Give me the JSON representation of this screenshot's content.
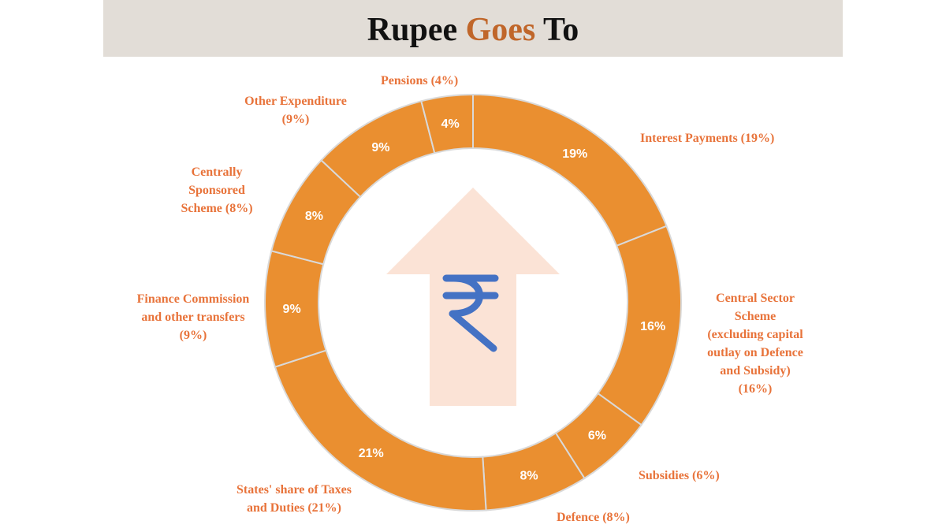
{
  "title": {
    "part1": "Rupee",
    "part2": "Goes",
    "part3": "To"
  },
  "colors": {
    "segment": "#ea8f30",
    "divider": "#d9d9d9",
    "label": "#e8733a",
    "arrow": "#fbe3d6",
    "rupee": "#4472c4",
    "header_bg": "#e2ddd7"
  },
  "center_icon": {
    "symbol": "₹",
    "icon": "up-arrow-icon"
  },
  "chart_data": {
    "type": "pie",
    "donut": true,
    "title": "Rupee Goes To",
    "unit": "%",
    "categories": [
      "Interest Payments",
      "Central Sector Scheme (excluding capital outlay on Defence and Subsidy)",
      "Subsidies",
      "Defence",
      "States' share of Taxes and Duties",
      "Finance Commission and other transfers",
      "Centrally Sponsored Scheme",
      "Other Expenditure",
      "Pensions"
    ],
    "values": [
      19,
      16,
      6,
      8,
      21,
      9,
      8,
      9,
      4
    ],
    "data_labels": [
      "19%",
      "16%",
      "6%",
      "8%",
      "21%",
      "9%",
      "8%",
      "9%",
      "4%"
    ]
  },
  "labels": {
    "interest": "Interest Payments (19%)",
    "central_sector": "Central Sector\nScheme\n(excluding capital\noutlay on Defence\nand Subsidy)\n(16%)",
    "subsidies": "Subsidies (6%)",
    "defence": "Defence (8%)",
    "states_share": "States' share of Taxes\nand Duties (21%)",
    "finance_commission": "Finance Commission\nand other transfers\n(9%)",
    "css": "Centrally\nSponsored\nScheme (8%)",
    "other_expenditure": "Other Expenditure\n(9%)",
    "pensions": "Pensions (4%)"
  }
}
